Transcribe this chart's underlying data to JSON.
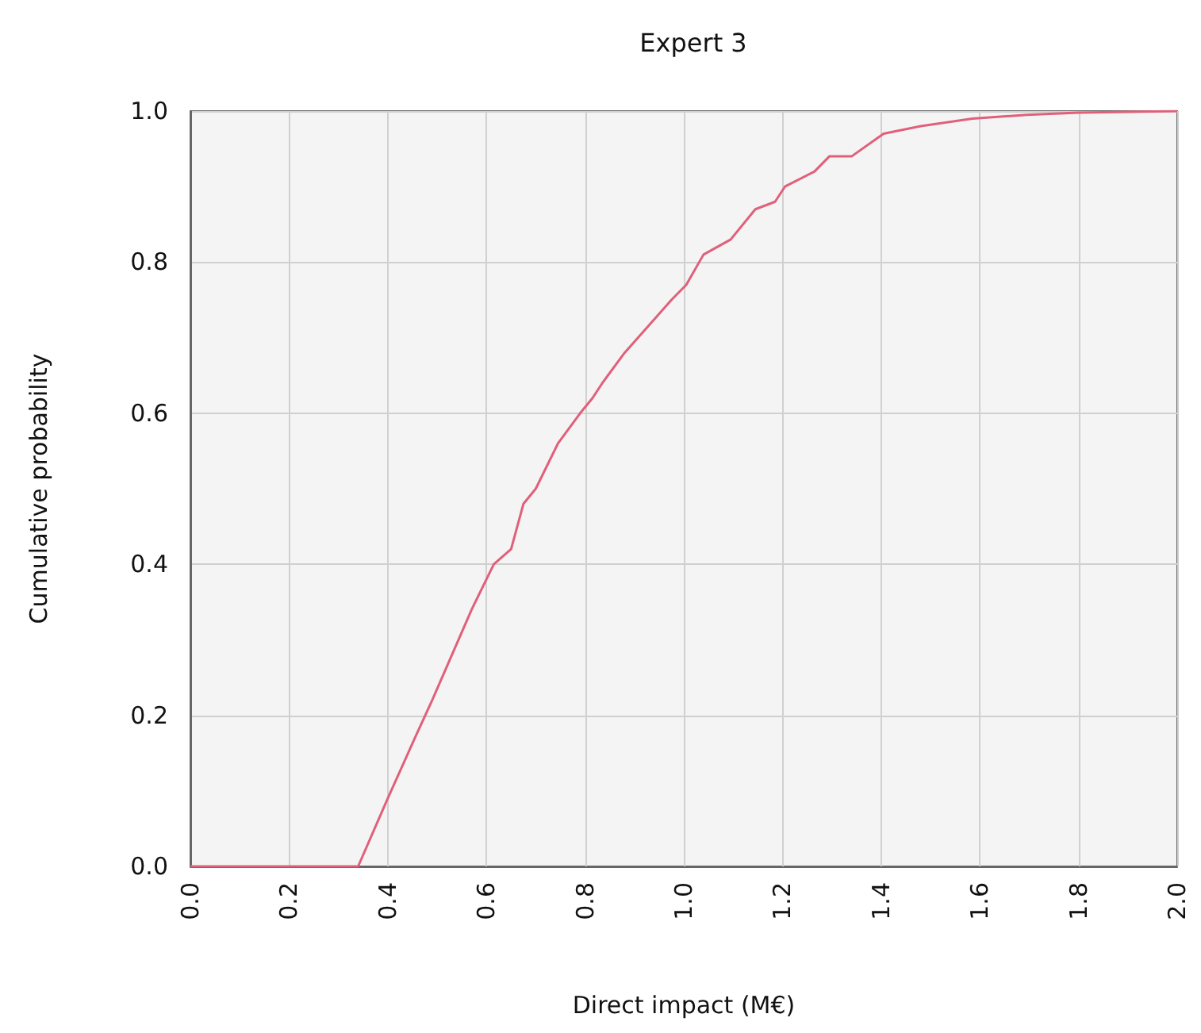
{
  "chart_data": {
    "type": "line",
    "title": "Expert 3",
    "xlabel": "Direct impact (M€)",
    "ylabel": "Cumulative probability",
    "x": [
      0,
      0.34,
      0.4,
      0.455,
      0.49,
      0.57,
      0.615,
      0.65,
      0.675,
      0.7,
      0.745,
      0.79,
      0.815,
      0.835,
      0.88,
      0.975,
      1.005,
      1.04,
      1.095,
      1.145,
      1.185,
      1.205,
      1.265,
      1.295,
      1.34,
      1.405,
      1.48,
      1.585,
      1.695,
      1.8,
      2.0
    ],
    "series": [
      {
        "color": "#e0607a",
        "values": [
          0,
          0,
          0.09,
          0.17,
          0.22,
          0.34,
          0.4,
          0.42,
          0.48,
          0.5,
          0.56,
          0.6,
          0.62,
          0.64,
          0.68,
          0.75,
          0.77,
          0.81,
          0.83,
          0.87,
          0.88,
          0.9,
          0.92,
          0.94,
          0.94,
          0.97,
          0.98,
          0.99,
          0.995,
          0.998,
          1.0
        ]
      }
    ],
    "xlim": [
      0,
      2
    ],
    "xticks": [
      {
        "value": 0,
        "label": "0.0"
      },
      0.2,
      0.4,
      0.6,
      0.8,
      {
        "value": 1,
        "label": "1.0"
      },
      1.2,
      1.4,
      1.6,
      1.8,
      {
        "value": 2,
        "label": "2.0"
      }
    ],
    "ylim": [
      0,
      1
    ],
    "yticks": [
      {
        "value": 0,
        "label": "0.0"
      },
      0.2,
      0.4,
      0.6,
      0.8,
      {
        "value": 1,
        "label": "1.0"
      }
    ],
    "grid": true,
    "marker": "none",
    "line_style": "solid"
  }
}
